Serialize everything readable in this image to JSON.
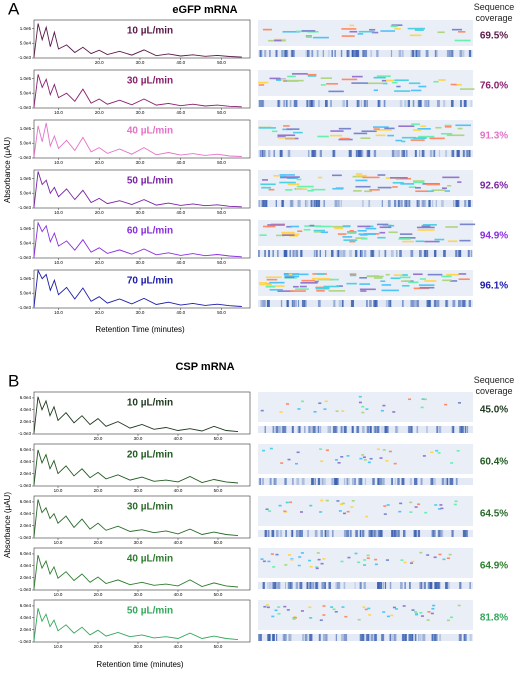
{
  "panels": [
    {
      "label": "A",
      "title": "eGFP mRNA",
      "coverage_header": "Sequence coverage",
      "y_label": "Absorbance (µAU)",
      "x_label": "Retention Time (minutes)"
    },
    {
      "label": "B",
      "title": "CSP mRNA",
      "coverage_header": "Sequence coverage",
      "y_label": "Absorbance (µAU)",
      "x_label": "Retention time (minutes)"
    }
  ],
  "chart_data": [
    {
      "type": "line",
      "title": "10 µL/min",
      "coverage": "69.5%",
      "color": "#5a1a48",
      "x": [
        4,
        5,
        6,
        7,
        8,
        9,
        10,
        12,
        14,
        16,
        18,
        20,
        22,
        25,
        28,
        31,
        34,
        37,
        40,
        43,
        46,
        49,
        52,
        55
      ],
      "values": [
        2000,
        118000,
        62000,
        105000,
        38000,
        88000,
        30000,
        44000,
        18000,
        36000,
        14000,
        26000,
        11000,
        22000,
        9000,
        27000,
        7000,
        13000,
        6000,
        10000,
        5000,
        8000,
        4000,
        2000
      ],
      "xlim": [
        4,
        57
      ],
      "xticks": [
        {
          "value": 20,
          "label": "20.0"
        },
        {
          "value": 30,
          "label": "30.0"
        },
        {
          "value": 40,
          "label": "40.0"
        },
        {
          "value": 50,
          "label": "50.0"
        }
      ],
      "ylim": [
        -1000,
        130000
      ],
      "yticks": [
        {
          "value": -1000,
          "label": "-1.0e3"
        },
        {
          "value": 50000,
          "label": "5.0e4"
        },
        {
          "value": 100000,
          "label": "1.0e5"
        }
      ]
    },
    {
      "type": "line",
      "title": "30 µL/min",
      "coverage": "76.0%",
      "color": "#8a1f6e",
      "x": [
        4,
        5,
        6,
        7,
        8,
        9,
        10,
        12,
        14,
        16,
        18,
        20,
        22,
        25,
        28,
        31,
        34,
        37,
        40,
        43,
        46,
        49,
        52,
        55
      ],
      "values": [
        2000,
        115000,
        70000,
        98000,
        45000,
        80000,
        35000,
        50000,
        22000,
        64000,
        16000,
        30000,
        12000,
        26000,
        10000,
        30000,
        9000,
        15000,
        7000,
        12000,
        6000,
        9000,
        5000,
        3000
      ],
      "xlim": [
        4,
        57
      ],
      "xticks": [
        {
          "value": 10,
          "label": "10.0"
        },
        {
          "value": 20,
          "label": "20.0"
        },
        {
          "value": 30,
          "label": "30.0"
        },
        {
          "value": 40,
          "label": "40.0"
        },
        {
          "value": 50,
          "label": "50.0"
        }
      ],
      "ylim": [
        -1000,
        130000
      ],
      "yticks": [
        {
          "value": -1000,
          "label": "-1.0e3"
        },
        {
          "value": 50000,
          "label": "5.0e4"
        },
        {
          "value": 100000,
          "label": "1.0e5"
        }
      ]
    },
    {
      "type": "line",
      "title": "40 µL/min",
      "coverage": "91.3%",
      "color": "#e472c8",
      "x": [
        4,
        5,
        6,
        7,
        8,
        9,
        10,
        12,
        14,
        16,
        18,
        20,
        22,
        25,
        28,
        31,
        34,
        37,
        40,
        43,
        46,
        49,
        52,
        55
      ],
      "values": [
        2000,
        110000,
        55000,
        120000,
        40000,
        75000,
        32000,
        60000,
        25000,
        70000,
        20000,
        35000,
        15000,
        30000,
        12000,
        35000,
        10000,
        18000,
        9000,
        14000,
        8000,
        12000,
        6000,
        4000
      ],
      "xlim": [
        4,
        57
      ],
      "xticks": [
        {
          "value": 10,
          "label": "10.0"
        },
        {
          "value": 20,
          "label": "20.0"
        },
        {
          "value": 30,
          "label": "30.0"
        },
        {
          "value": 40,
          "label": "40.0"
        },
        {
          "value": 50,
          "label": "50.0"
        }
      ],
      "ylim": [
        -1000,
        130000
      ],
      "yticks": [
        {
          "value": -1000,
          "label": "-1.0e3"
        },
        {
          "value": 50000,
          "label": "5.0e4"
        },
        {
          "value": 100000,
          "label": "1.0e5"
        }
      ]
    },
    {
      "type": "line",
      "title": "50 µL/min",
      "coverage": "92.6%",
      "color": "#7a22a6",
      "x": [
        4,
        5,
        6,
        7,
        8,
        9,
        10,
        12,
        14,
        16,
        18,
        20,
        22,
        25,
        28,
        31,
        34,
        37,
        40,
        43,
        46,
        49,
        52,
        55
      ],
      "values": [
        2000,
        125000,
        80000,
        95000,
        50000,
        70000,
        38000,
        65000,
        28000,
        60000,
        18000,
        32000,
        14000,
        24000,
        11000,
        28000,
        9000,
        16000,
        8000,
        13000,
        7000,
        10000,
        5000,
        3000
      ],
      "xlim": [
        4,
        57
      ],
      "xticks": [
        {
          "value": 10,
          "label": "10.0"
        },
        {
          "value": 20,
          "label": "20.0"
        },
        {
          "value": 30,
          "label": "30.0"
        },
        {
          "value": 40,
          "label": "40.0"
        },
        {
          "value": 50,
          "label": "50.0"
        }
      ],
      "ylim": [
        -1000,
        130000
      ],
      "yticks": [
        {
          "value": -1000,
          "label": "-1.0e3"
        },
        {
          "value": 50000,
          "label": "5.0e4"
        },
        {
          "value": 100000,
          "label": "1.0e5"
        }
      ]
    },
    {
      "type": "line",
      "title": "60 µL/min",
      "coverage": "94.9%",
      "color": "#8a2ee0",
      "x": [
        4,
        5,
        6,
        7,
        8,
        9,
        10,
        12,
        14,
        16,
        18,
        20,
        22,
        25,
        28,
        31,
        34,
        37,
        40,
        43,
        46,
        49,
        52,
        55
      ],
      "values": [
        2000,
        120000,
        90000,
        110000,
        55000,
        85000,
        40000,
        58000,
        26000,
        62000,
        19000,
        34000,
        15000,
        27000,
        12000,
        30000,
        10000,
        17000,
        8000,
        14000,
        7000,
        11000,
        6000,
        3000
      ],
      "xlim": [
        4,
        57
      ],
      "xticks": [
        {
          "value": 10,
          "label": "10.0"
        },
        {
          "value": 20,
          "label": "20.0"
        },
        {
          "value": 30,
          "label": "30.0"
        },
        {
          "value": 40,
          "label": "40.0"
        },
        {
          "value": 50,
          "label": "50.0"
        }
      ],
      "ylim": [
        -1000,
        130000
      ],
      "yticks": [
        {
          "value": -1000,
          "label": "-1.0e3"
        },
        {
          "value": 50000,
          "label": "5.0e4"
        },
        {
          "value": 100000,
          "label": "1.0e5"
        }
      ]
    },
    {
      "type": "line",
      "title": "70 µL/min",
      "coverage": "96.1%",
      "color": "#1c1caa",
      "x": [
        4,
        5,
        6,
        7,
        8,
        9,
        10,
        12,
        14,
        16,
        18,
        20,
        22,
        25,
        28,
        31,
        34,
        37,
        40,
        43,
        46,
        49,
        52,
        55
      ],
      "values": [
        2000,
        128000,
        100000,
        115000,
        60000,
        95000,
        45000,
        70000,
        30000,
        68000,
        22000,
        38000,
        16000,
        30000,
        13000,
        32000,
        11000,
        19000,
        9000,
        15000,
        8000,
        12000,
        7000,
        4000
      ],
      "xlim": [
        4,
        57
      ],
      "xticks": [
        {
          "value": 10,
          "label": "10.0"
        },
        {
          "value": 20,
          "label": "20.0"
        },
        {
          "value": 30,
          "label": "30.0"
        },
        {
          "value": 40,
          "label": "40.0"
        },
        {
          "value": 50,
          "label": "50.0"
        }
      ],
      "ylim": [
        -1000,
        130000
      ],
      "yticks": [
        {
          "value": -1000,
          "label": "-1.0e3"
        },
        {
          "value": 50000,
          "label": "5.0e4"
        },
        {
          "value": 100000,
          "label": "1.0e5"
        }
      ]
    },
    {
      "type": "line",
      "title": "10 µL/min",
      "coverage": "45.0%",
      "color": "#1f3a1f",
      "x": [
        4,
        5,
        6,
        7,
        8,
        9,
        10,
        12,
        14,
        16,
        18,
        20,
        22,
        25,
        28,
        31,
        34,
        37,
        40,
        43,
        46,
        49,
        52,
        55
      ],
      "values": [
        1000,
        62000,
        40000,
        55000,
        30000,
        45000,
        22000,
        35000,
        18000,
        30000,
        15000,
        25000,
        12000,
        20000,
        9000,
        15000,
        7000,
        10000,
        5000,
        8000,
        4000,
        12000,
        5000,
        3000
      ],
      "xlim": [
        4,
        58
      ],
      "xticks": [
        {
          "value": 20,
          "label": "20.0"
        },
        {
          "value": 30,
          "label": "30.0"
        },
        {
          "value": 40,
          "label": "40.0"
        },
        {
          "value": 50,
          "label": "50.0"
        }
      ],
      "ylim": [
        -1000,
        70000
      ],
      "yticks": [
        {
          "value": -1000,
          "label": "-1.0e3"
        },
        {
          "value": 20000,
          "label": "2.0e4"
        },
        {
          "value": 40000,
          "label": "4.0e4"
        },
        {
          "value": 60000,
          "label": "6.0e4"
        }
      ]
    },
    {
      "type": "line",
      "title": "20 µL/min",
      "coverage": "60.4%",
      "color": "#1f5a1f",
      "x": [
        4,
        5,
        6,
        7,
        8,
        9,
        10,
        12,
        14,
        16,
        18,
        20,
        22,
        25,
        28,
        31,
        34,
        37,
        40,
        43,
        46,
        49,
        52,
        55
      ],
      "values": [
        1000,
        60000,
        38000,
        52000,
        28000,
        42000,
        20000,
        33000,
        16000,
        28000,
        13000,
        22000,
        11000,
        18000,
        9000,
        14000,
        7000,
        9000,
        6000,
        15000,
        5000,
        10000,
        6000,
        4000
      ],
      "xlim": [
        4,
        58
      ],
      "xticks": [
        {
          "value": 10,
          "label": "10.0"
        },
        {
          "value": 20,
          "label": "20.0"
        },
        {
          "value": 30,
          "label": "30.0"
        },
        {
          "value": 40,
          "label": "40.0"
        },
        {
          "value": 50,
          "label": "50.0"
        }
      ],
      "ylim": [
        -1000,
        70000
      ],
      "yticks": [
        {
          "value": -1000,
          "label": "-1.0e3"
        },
        {
          "value": 20000,
          "label": "2.0e4"
        },
        {
          "value": 40000,
          "label": "4.0e4"
        },
        {
          "value": 60000,
          "label": "6.0e4"
        }
      ]
    },
    {
      "type": "line",
      "title": "30 µL/min",
      "coverage": "64.5%",
      "color": "#2a6a2a",
      "x": [
        4,
        5,
        6,
        7,
        8,
        9,
        10,
        12,
        14,
        16,
        18,
        20,
        22,
        25,
        28,
        31,
        34,
        37,
        40,
        43,
        46,
        49,
        52,
        55
      ],
      "values": [
        1000,
        64000,
        42000,
        50000,
        32000,
        40000,
        24000,
        36000,
        17000,
        31000,
        14000,
        24000,
        12000,
        19000,
        10000,
        13000,
        8000,
        11000,
        6000,
        14000,
        5000,
        9000,
        5000,
        3000
      ],
      "xlim": [
        4,
        58
      ],
      "xticks": [
        {
          "value": 10,
          "label": "10.0"
        },
        {
          "value": 20,
          "label": "20.0"
        },
        {
          "value": 30,
          "label": "30.0"
        },
        {
          "value": 40,
          "label": "40.0"
        },
        {
          "value": 50,
          "label": "50.0"
        }
      ],
      "ylim": [
        -1000,
        70000
      ],
      "yticks": [
        {
          "value": -1000,
          "label": "-1.0e3"
        },
        {
          "value": 20000,
          "label": "2.0e4"
        },
        {
          "value": 40000,
          "label": "4.0e4"
        },
        {
          "value": 60000,
          "label": "6.0e4"
        }
      ]
    },
    {
      "type": "line",
      "title": "40 µL/min",
      "coverage": "64.9%",
      "color": "#2e7d2e",
      "x": [
        4,
        5,
        6,
        7,
        8,
        9,
        10,
        12,
        14,
        16,
        18,
        20,
        22,
        25,
        28,
        31,
        34,
        37,
        40,
        43,
        46,
        49,
        52,
        55
      ],
      "values": [
        1000,
        58000,
        36000,
        48000,
        26000,
        38000,
        19000,
        30000,
        15000,
        26000,
        12000,
        21000,
        10000,
        16000,
        8000,
        12000,
        7000,
        9000,
        6000,
        16000,
        5000,
        11000,
        6000,
        4000
      ],
      "xlim": [
        4,
        58
      ],
      "xticks": [
        {
          "value": 10,
          "label": "10.0"
        },
        {
          "value": 20,
          "label": "20.0"
        },
        {
          "value": 30,
          "label": "30.0"
        },
        {
          "value": 40,
          "label": "40.0"
        },
        {
          "value": 50,
          "label": "50.0"
        }
      ],
      "ylim": [
        -1000,
        70000
      ],
      "yticks": [
        {
          "value": -1000,
          "label": "-1.0e3"
        },
        {
          "value": 20000,
          "label": "2.0e4"
        },
        {
          "value": 40000,
          "label": "4.0e4"
        },
        {
          "value": 60000,
          "label": "6.0e4"
        }
      ]
    },
    {
      "type": "line",
      "title": "50 µL/min",
      "coverage": "81.8%",
      "color": "#33a85a",
      "x": [
        4,
        5,
        6,
        7,
        8,
        9,
        10,
        12,
        14,
        16,
        18,
        20,
        22,
        25,
        28,
        31,
        34,
        37,
        40,
        43,
        46,
        49,
        52,
        55
      ],
      "values": [
        1000,
        56000,
        34000,
        46000,
        25000,
        36000,
        18000,
        28000,
        14000,
        24000,
        11000,
        19000,
        9000,
        15000,
        8000,
        11000,
        6000,
        8000,
        5000,
        14000,
        5000,
        9000,
        5000,
        3000
      ],
      "xlim": [
        4,
        58
      ],
      "xticks": [
        {
          "value": 10,
          "label": "10.0"
        },
        {
          "value": 20,
          "label": "20.0"
        },
        {
          "value": 30,
          "label": "30.0"
        },
        {
          "value": 40,
          "label": "40.0"
        },
        {
          "value": 50,
          "label": "50.0"
        }
      ],
      "ylim": [
        -1000,
        70000
      ],
      "yticks": [
        {
          "value": -1000,
          "label": "-1.0e3"
        },
        {
          "value": 20000,
          "label": "2.0e4"
        },
        {
          "value": 40000,
          "label": "4.0e4"
        },
        {
          "value": 60000,
          "label": "6.0e4"
        }
      ]
    }
  ]
}
